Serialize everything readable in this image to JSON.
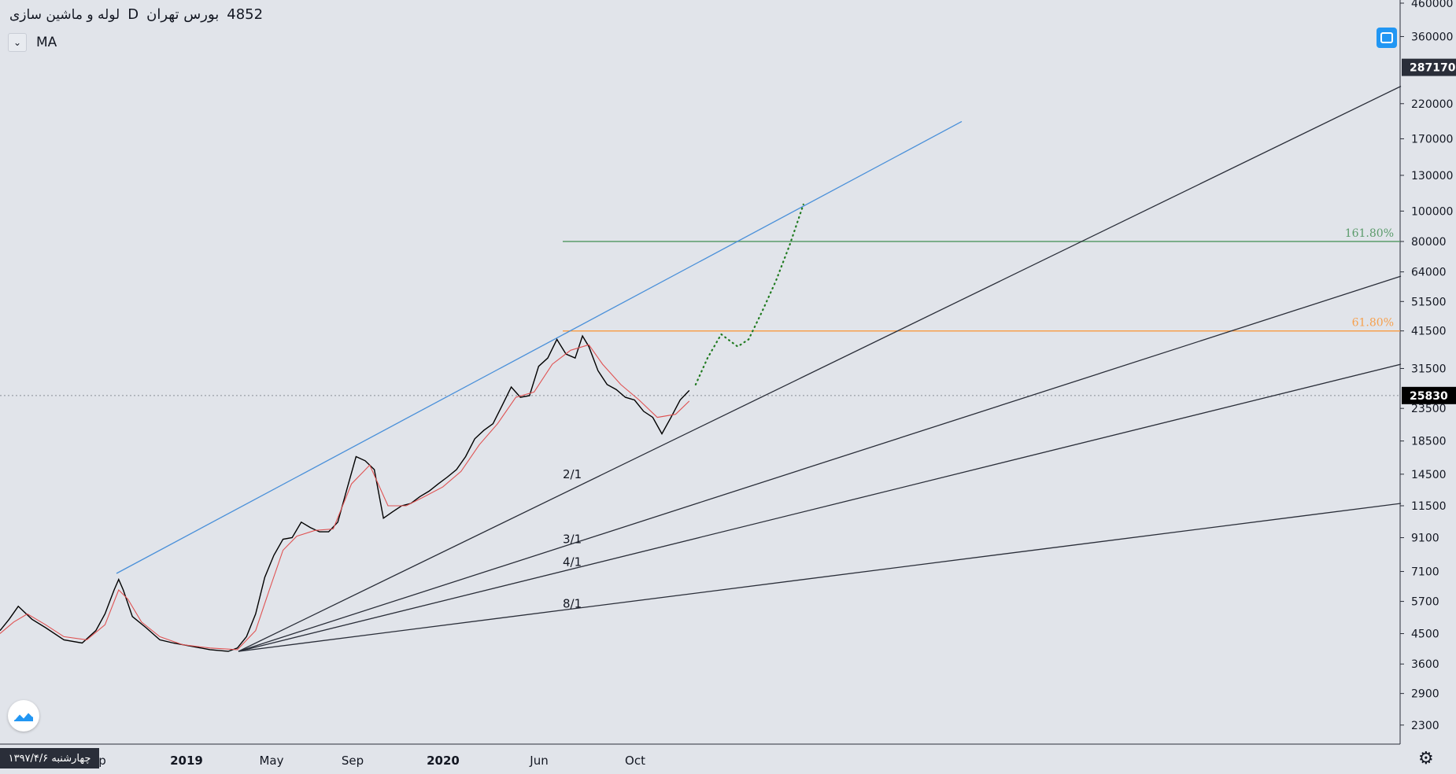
{
  "header": {
    "ticker": "4852",
    "exchange": "بورس تهران",
    "interval": "D",
    "symbol_name": "لوله و ماشین سازی"
  },
  "indicator": {
    "label": "MA"
  },
  "crosshair_date": "چهارشنبه ۱۳۹۷/۴/۶",
  "price_badges": {
    "upper": "287170",
    "current": "25830"
  },
  "chart_data": {
    "type": "line",
    "scale": "log",
    "ylim": [
      2000,
      460000
    ],
    "y_ticks": [
      460000,
      360000,
      287170,
      220000,
      170000,
      130000,
      100000,
      80000,
      64000,
      51500,
      41500,
      31500,
      25830,
      23500,
      18500,
      14500,
      11500,
      9100,
      7100,
      5700,
      4500,
      3600,
      2900,
      2300
    ],
    "x_labels": [
      {
        "text": "p",
        "idx": 0
      },
      {
        "text": "2019",
        "idx": 1
      },
      {
        "text": "May",
        "idx": 2
      },
      {
        "text": "Sep",
        "idx": 3
      },
      {
        "text": "2020",
        "idx": 4
      },
      {
        "text": "Jun",
        "idx": 5
      },
      {
        "text": "Oct",
        "idx": 6
      }
    ],
    "series": [
      {
        "color": "#000000",
        "points": [
          [
            0,
            4600
          ],
          [
            10,
            5000
          ],
          [
            20,
            5500
          ],
          [
            35,
            5000
          ],
          [
            50,
            4700
          ],
          [
            70,
            4300
          ],
          [
            90,
            4200
          ],
          [
            105,
            4600
          ],
          [
            115,
            5200
          ],
          [
            125,
            6200
          ],
          [
            130,
            6700
          ],
          [
            135,
            6200
          ],
          [
            145,
            5100
          ],
          [
            160,
            4700
          ],
          [
            175,
            4300
          ],
          [
            190,
            4200
          ],
          [
            210,
            4100
          ],
          [
            230,
            4000
          ],
          [
            250,
            3950
          ],
          [
            260,
            4050
          ],
          [
            270,
            4400
          ],
          [
            280,
            5200
          ],
          [
            290,
            6800
          ],
          [
            300,
            8000
          ],
          [
            310,
            9000
          ],
          [
            320,
            9100
          ],
          [
            330,
            10200
          ],
          [
            340,
            9800
          ],
          [
            350,
            9500
          ],
          [
            360,
            9500
          ],
          [
            370,
            10200
          ],
          [
            380,
            13000
          ],
          [
            390,
            16500
          ],
          [
            400,
            16000
          ],
          [
            410,
            15000
          ],
          [
            420,
            10500
          ],
          [
            430,
            11000
          ],
          [
            440,
            11500
          ],
          [
            450,
            11700
          ],
          [
            460,
            12300
          ],
          [
            470,
            12800
          ],
          [
            480,
            13500
          ],
          [
            490,
            14200
          ],
          [
            500,
            15000
          ],
          [
            510,
            16500
          ],
          [
            520,
            18800
          ],
          [
            530,
            20000
          ],
          [
            540,
            21000
          ],
          [
            550,
            24000
          ],
          [
            560,
            27500
          ],
          [
            570,
            25500
          ],
          [
            580,
            25800
          ],
          [
            590,
            32000
          ],
          [
            600,
            34000
          ],
          [
            610,
            39000
          ],
          [
            620,
            35000
          ],
          [
            630,
            34000
          ],
          [
            638,
            40000
          ],
          [
            645,
            37000
          ],
          [
            655,
            31000
          ],
          [
            665,
            28000
          ],
          [
            675,
            27000
          ],
          [
            685,
            25500
          ],
          [
            695,
            25000
          ],
          [
            705,
            23000
          ],
          [
            715,
            22000
          ],
          [
            725,
            19500
          ],
          [
            735,
            22000
          ],
          [
            745,
            25000
          ],
          [
            755,
            26800
          ]
        ]
      },
      {
        "color": "#e05252",
        "points": [
          [
            0,
            4500
          ],
          [
            15,
            4900
          ],
          [
            30,
            5200
          ],
          [
            50,
            4800
          ],
          [
            70,
            4400
          ],
          [
            95,
            4300
          ],
          [
            115,
            4800
          ],
          [
            130,
            6200
          ],
          [
            140,
            5800
          ],
          [
            155,
            4900
          ],
          [
            175,
            4400
          ],
          [
            200,
            4150
          ],
          [
            230,
            4050
          ],
          [
            260,
            4000
          ],
          [
            280,
            4600
          ],
          [
            295,
            6200
          ],
          [
            310,
            8300
          ],
          [
            325,
            9200
          ],
          [
            345,
            9600
          ],
          [
            365,
            9700
          ],
          [
            385,
            13500
          ],
          [
            405,
            15500
          ],
          [
            425,
            11500
          ],
          [
            445,
            11500
          ],
          [
            465,
            12300
          ],
          [
            485,
            13200
          ],
          [
            505,
            14800
          ],
          [
            525,
            18000
          ],
          [
            545,
            21000
          ],
          [
            565,
            25500
          ],
          [
            585,
            26500
          ],
          [
            605,
            32500
          ],
          [
            625,
            36000
          ],
          [
            645,
            37500
          ],
          [
            660,
            32500
          ],
          [
            680,
            28000
          ],
          [
            700,
            25000
          ],
          [
            720,
            22000
          ],
          [
            740,
            22500
          ],
          [
            755,
            24800
          ]
        ]
      }
    ],
    "projection": {
      "color": "#1f7a1f",
      "points": [
        [
          762,
          28000
        ],
        [
          775,
          34000
        ],
        [
          790,
          40500
        ],
        [
          800,
          38500
        ],
        [
          808,
          37000
        ],
        [
          820,
          39000
        ],
        [
          835,
          48000
        ],
        [
          850,
          60000
        ],
        [
          865,
          78000
        ],
        [
          880,
          105000
        ]
      ]
    },
    "trendline": {
      "color": "#4a90d9",
      "from": [
        128,
        7000
      ],
      "to": [
        1035,
        193000
      ]
    },
    "levels": [
      {
        "label": "161.80%",
        "value": 80000,
        "color": "#5b9b6b"
      },
      {
        "label": "61.80%",
        "value": 41500,
        "color": "#f6a04d"
      }
    ],
    "last_price_line": 25830,
    "gann_fan": {
      "origin": [
        258,
        3950
      ],
      "lines": [
        {
          "label": "2/1",
          "end": [
            1510,
            250000
          ],
          "label_at": [
            605,
            14500
          ]
        },
        {
          "label": "3/1",
          "end": [
            1510,
            62000
          ],
          "label_at": [
            605,
            9000
          ]
        },
        {
          "label": "4/1",
          "end": [
            1510,
            32500
          ],
          "label_at": [
            605,
            7600
          ]
        },
        {
          "label": "8/1",
          "end": [
            1510,
            11700
          ],
          "label_at": [
            605,
            5600
          ]
        }
      ]
    }
  }
}
